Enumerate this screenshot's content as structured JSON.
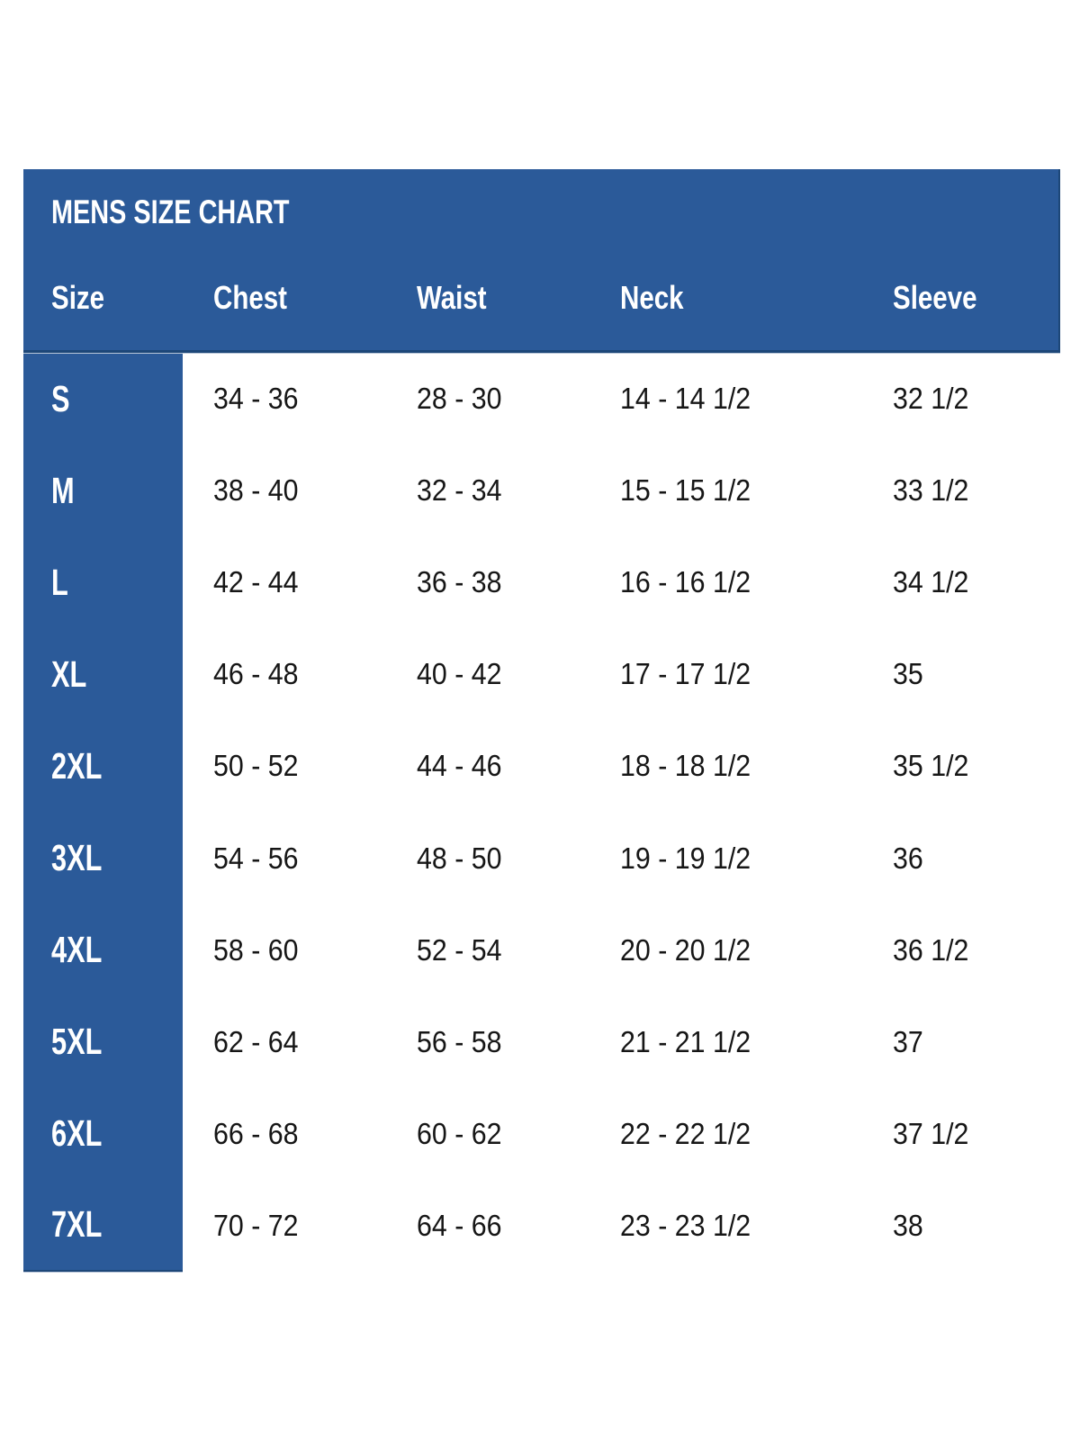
{
  "colors": {
    "panel_blue": "#2b5a99",
    "edge_dark_blue": "#1d4778",
    "edge_light": "#b9c6d8",
    "data_text": "#161616",
    "header_text": "#ffffff",
    "background": "#ffffff"
  },
  "chart_data": {
    "type": "table",
    "title": "MENS SIZE CHART",
    "columns": [
      "Size",
      "Chest",
      "Waist",
      "Neck",
      "Sleeve"
    ],
    "rows": [
      {
        "size": "S",
        "chest": "34 - 36",
        "waist": "28 - 30",
        "neck": "14 - 14 1/2",
        "sleeve": "32 1/2"
      },
      {
        "size": "M",
        "chest": "38 - 40",
        "waist": "32 - 34",
        "neck": "15 - 15 1/2",
        "sleeve": "33 1/2"
      },
      {
        "size": "L",
        "chest": "42 - 44",
        "waist": "36 - 38",
        "neck": "16 - 16 1/2",
        "sleeve": "34 1/2"
      },
      {
        "size": "XL",
        "chest": "46 - 48",
        "waist": "40 - 42",
        "neck": "17 - 17 1/2",
        "sleeve": "35"
      },
      {
        "size": "2XL",
        "chest": "50 - 52",
        "waist": "44 - 46",
        "neck": "18 - 18 1/2",
        "sleeve": "35 1/2"
      },
      {
        "size": "3XL",
        "chest": "54 - 56",
        "waist": "48 - 50",
        "neck": "19 - 19 1/2",
        "sleeve": "36"
      },
      {
        "size": "4XL",
        "chest": "58 - 60",
        "waist": "52 - 54",
        "neck": "20 - 20 1/2",
        "sleeve": "36 1/2"
      },
      {
        "size": "5XL",
        "chest": "62 - 64",
        "waist": "56 - 58",
        "neck": "21 - 21 1/2",
        "sleeve": "37"
      },
      {
        "size": "6XL",
        "chest": "66 - 68",
        "waist": "60 - 62",
        "neck": "22 - 22 1/2",
        "sleeve": "37 1/2"
      },
      {
        "size": "7XL",
        "chest": "70 - 72",
        "waist": "64 - 66",
        "neck": "23 - 23 1/2",
        "sleeve": "38"
      }
    ]
  }
}
